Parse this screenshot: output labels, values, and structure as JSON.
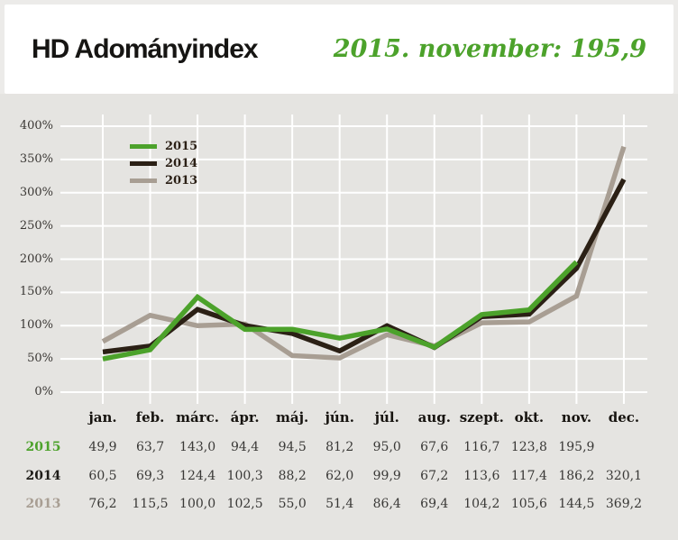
{
  "header": {
    "title": "HD Adományindex",
    "subtitle": "2015. november: 195,9"
  },
  "colors": {
    "page_background": "#e5e4e1",
    "header_strip": "#ecebe9",
    "card_background": "#ffffff",
    "gridline": "#ffffff",
    "accent_green": "#4ca22b",
    "dark_brown": "#2b2015",
    "tan_gray": "#a89e93",
    "tick_text": "#3a3734",
    "number_text": "#393836"
  },
  "chart_data": {
    "type": "line",
    "title": "HD Adományindex",
    "subtitle": "2015. november: 195,9",
    "categories": [
      "jan.",
      "feb.",
      "márc.",
      "ápr.",
      "máj.",
      "jún.",
      "júl.",
      "aug.",
      "szept.",
      "okt.",
      "nov.",
      "dec."
    ],
    "y_tick_labels": [
      "400%",
      "350%",
      "300%",
      "250%",
      "200%",
      "150%",
      "100%",
      "50%",
      "0%"
    ],
    "ylim": [
      0,
      400
    ],
    "grid": true,
    "legend_position": "top-left",
    "series": [
      {
        "name": "2015",
        "color": "#4ca22b",
        "values": [
          49.9,
          63.7,
          143.0,
          94.4,
          94.5,
          81.2,
          95.0,
          67.6,
          116.7,
          123.8,
          195.9,
          null
        ]
      },
      {
        "name": "2014",
        "color": "#2b2015",
        "values": [
          60.5,
          69.3,
          124.4,
          100.3,
          88.2,
          62.0,
          99.9,
          67.2,
          113.6,
          117.4,
          186.2,
          320.1
        ]
      },
      {
        "name": "2013",
        "color": "#a89e93",
        "values": [
          76.2,
          115.5,
          100.0,
          102.5,
          55.0,
          51.4,
          86.4,
          69.4,
          104.2,
          105.6,
          144.5,
          369.2
        ]
      }
    ]
  },
  "table": {
    "rows": [
      {
        "label": "2015",
        "color": "#4ca22b",
        "values": [
          "49,9",
          "63,7",
          "143,0",
          "94,4",
          "94,5",
          "81,2",
          "95,0",
          "67,6",
          "116,7",
          "123,8",
          "195,9",
          ""
        ]
      },
      {
        "label": "2014",
        "color": "#1d1b17",
        "values": [
          "60,5",
          "69,3",
          "124,4",
          "100,3",
          "88,2",
          "62,0",
          "99,9",
          "67,2",
          "113,6",
          "117,4",
          "186,2",
          "320,1"
        ]
      },
      {
        "label": "2013",
        "color": "#a89e93",
        "values": [
          "76,2",
          "115,5",
          "100,0",
          "102,5",
          "55,0",
          "51,4",
          "86,4",
          "69,4",
          "104,2",
          "105,6",
          "144,5",
          "369,2"
        ]
      }
    ]
  }
}
